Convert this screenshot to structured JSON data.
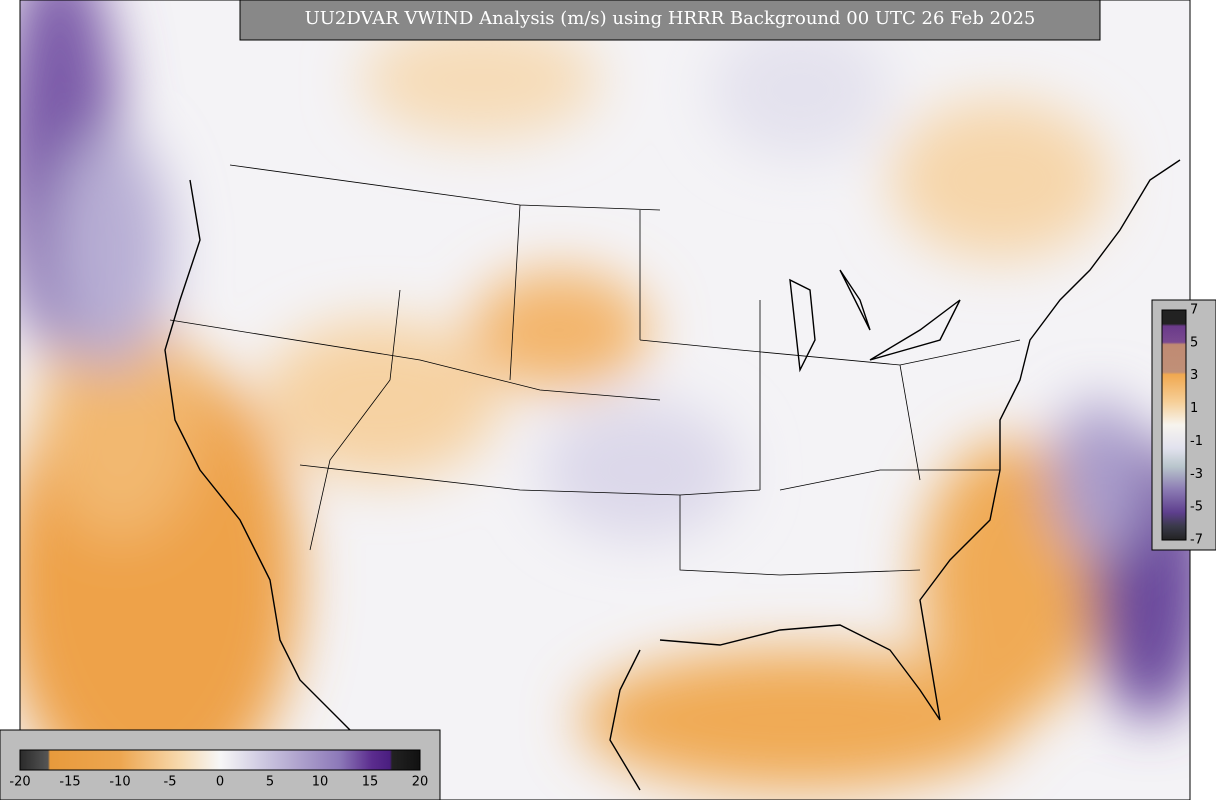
{
  "title": "UU2DVAR VWIND Analysis (m/s) using HRRR Background 00 UTC 26 Feb 2025",
  "colorbars": [
    {
      "labels": [
        "-20",
        "-15",
        "-10",
        "-5",
        "0",
        "5",
        "10",
        "15",
        "20"
      ]
    },
    {
      "labels": [
        "7",
        "5",
        "3",
        "1",
        "-1",
        "-3",
        "-5",
        "-7"
      ]
    }
  ]
}
